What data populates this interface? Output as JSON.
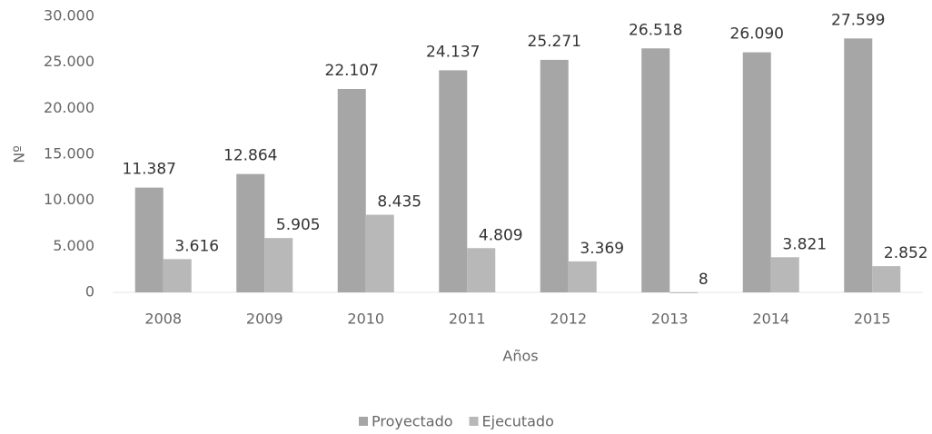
{
  "chart_data": {
    "type": "bar",
    "categories": [
      "2008",
      "2009",
      "2010",
      "2011",
      "2012",
      "2013",
      "2014",
      "2015"
    ],
    "series": [
      {
        "name": "Proyectado",
        "color": "#a6a6a6",
        "values": [
          11387,
          12864,
          22107,
          24137,
          25271,
          26518,
          26090,
          27599
        ],
        "value_labels": [
          "11.387",
          "12.864",
          "22.107",
          "24.137",
          "25.271",
          "26.518",
          "26.090",
          "27.599"
        ]
      },
      {
        "name": "Ejecutado",
        "color": "#b8b8b8",
        "values": [
          3616,
          5905,
          8435,
          4809,
          3369,
          8,
          3821,
          2852
        ],
        "value_labels": [
          "3.616",
          "5.905",
          "8.435",
          "4.809",
          "3.369",
          "8",
          "3.821",
          "2.852"
        ]
      }
    ],
    "xlabel": "Años",
    "ylabel": "Nº",
    "ylim": [
      0,
      30000
    ],
    "yticks": [
      0,
      {
        "value": 5000,
        "label": "5.000"
      },
      {
        "value": 10000,
        "label": "10.000"
      },
      {
        "value": 15000,
        "label": "15.000"
      },
      {
        "value": 20000,
        "label": "20.000"
      },
      {
        "value": 25000,
        "label": "25.000"
      },
      {
        "value": 30000,
        "label": "30.000"
      }
    ],
    "legend": "bottom",
    "grid": false
  }
}
